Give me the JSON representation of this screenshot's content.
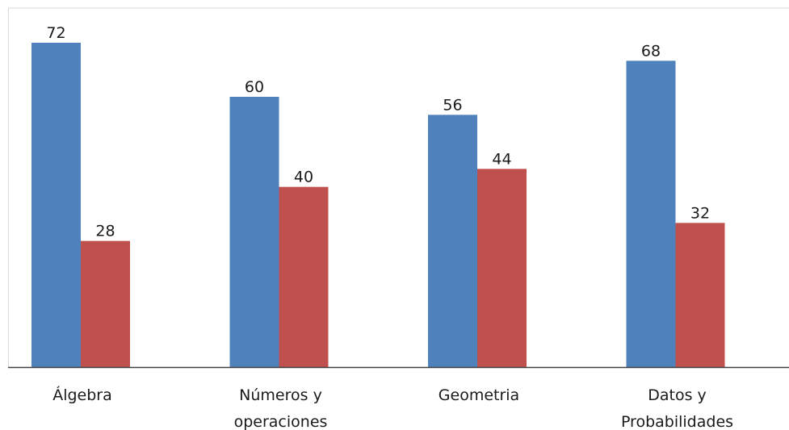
{
  "chart_data": {
    "type": "bar",
    "title": "",
    "xlabel": "",
    "ylabel": "",
    "categories": [
      [
        "Álgebra"
      ],
      [
        "Números y",
        "operaciones"
      ],
      [
        "Geometria"
      ],
      [
        "Datos y",
        "Probabilidades"
      ]
    ],
    "series": [
      {
        "values": [
          72,
          60,
          56,
          68
        ],
        "color": "#4f81bd"
      },
      {
        "values": [
          28,
          40,
          44,
          32
        ],
        "color": "#c0504d"
      }
    ],
    "ylim": [
      0,
      80
    ],
    "grid": false,
    "legend": "none",
    "data_labels": true
  }
}
